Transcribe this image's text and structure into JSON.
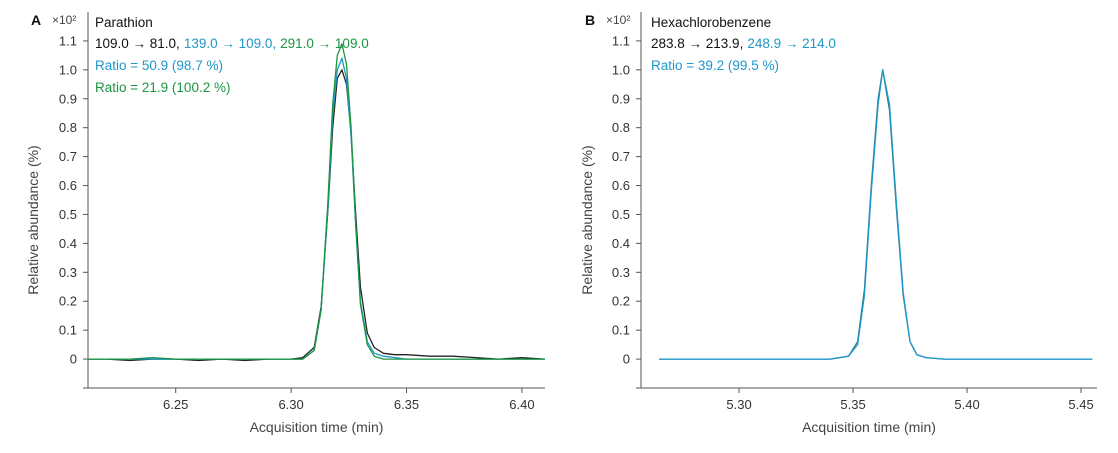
{
  "chart_data": [
    {
      "type": "line",
      "panel": "A",
      "title": "Parathion",
      "scale_label": "×10²",
      "xlabel": "Acquisition time (min)",
      "ylabel": "Relative abundance (%)",
      "xlim": [
        6.212,
        6.41
      ],
      "ylim": [
        -0.1,
        1.2
      ],
      "x_ticks": [
        6.25,
        6.3,
        6.35,
        6.4
      ],
      "x_tick_labels": [
        "6.25",
        "6.30",
        "6.35",
        "6.40"
      ],
      "y_ticks": [
        0,
        0.1,
        0.2,
        0.3,
        0.4,
        0.5,
        0.6,
        0.7,
        0.8,
        0.9,
        1.0,
        1.1
      ],
      "y_tick_labels": [
        "0",
        "0.1",
        "0.2",
        "0.3",
        "0.4",
        "0.5",
        "0.6",
        "0.7",
        "0.8",
        "0.9",
        "1.0",
        "1.1"
      ],
      "legend": {
        "transition_line": [
          {
            "text": "109.0 → 81.0,",
            "color": "#111111"
          },
          {
            "text": "139.0 → 109.0,",
            "color": "#1f97c9"
          },
          {
            "text": "291.0 → 109.0",
            "color": "#1a9641"
          }
        ],
        "ratios": [
          {
            "text": "Ratio = 50.9 (98.7 %)",
            "color": "#1f97c9"
          },
          {
            "text": "Ratio = 21.9 (100.2 %)",
            "color": "#1a9641"
          }
        ]
      },
      "series": [
        {
          "name": "109.0 → 81.0",
          "color": "#222222",
          "x": [
            6.212,
            6.22,
            6.23,
            6.24,
            6.25,
            6.26,
            6.27,
            6.28,
            6.29,
            6.3,
            6.305,
            6.31,
            6.313,
            6.316,
            6.318,
            6.32,
            6.322,
            6.324,
            6.326,
            6.328,
            6.33,
            6.333,
            6.336,
            6.34,
            6.345,
            6.35,
            6.36,
            6.37,
            6.38,
            6.39,
            6.4,
            6.41
          ],
          "y": [
            0.0,
            0.0,
            -0.005,
            0.0,
            0.0,
            -0.005,
            0.0,
            -0.005,
            0.0,
            0.0,
            0.005,
            0.04,
            0.18,
            0.52,
            0.8,
            0.97,
            1.0,
            0.95,
            0.78,
            0.5,
            0.25,
            0.09,
            0.04,
            0.02,
            0.015,
            0.015,
            0.01,
            0.01,
            0.005,
            0.0,
            0.005,
            0.0
          ]
        },
        {
          "name": "139.0 → 109.0",
          "color": "#1f97c9",
          "x": [
            6.212,
            6.22,
            6.23,
            6.24,
            6.25,
            6.26,
            6.27,
            6.28,
            6.29,
            6.3,
            6.305,
            6.31,
            6.313,
            6.316,
            6.318,
            6.32,
            6.322,
            6.324,
            6.326,
            6.328,
            6.33,
            6.333,
            6.336,
            6.34,
            6.345,
            6.35,
            6.36,
            6.37,
            6.38,
            6.39,
            6.4,
            6.41
          ],
          "y": [
            0.0,
            0.0,
            0.0,
            0.0,
            0.0,
            0.0,
            0.0,
            0.0,
            0.0,
            0.0,
            0.0,
            0.03,
            0.17,
            0.53,
            0.84,
            1.0,
            1.04,
            0.97,
            0.77,
            0.46,
            0.2,
            0.06,
            0.02,
            0.01,
            0.005,
            0.0,
            0.0,
            0.0,
            0.0,
            0.0,
            0.0,
            0.0
          ]
        },
        {
          "name": "291.0 → 109.0",
          "color": "#1a9641",
          "x": [
            6.212,
            6.22,
            6.23,
            6.24,
            6.25,
            6.26,
            6.27,
            6.28,
            6.29,
            6.3,
            6.305,
            6.31,
            6.313,
            6.316,
            6.318,
            6.32,
            6.322,
            6.324,
            6.326,
            6.328,
            6.33,
            6.333,
            6.336,
            6.34,
            6.345,
            6.35,
            6.36,
            6.37,
            6.38,
            6.39,
            6.4,
            6.41
          ],
          "y": [
            0.0,
            0.0,
            0.0,
            0.005,
            0.0,
            0.0,
            0.0,
            0.0,
            0.0,
            0.0,
            0.0,
            0.03,
            0.17,
            0.55,
            0.88,
            1.05,
            1.09,
            1.02,
            0.8,
            0.47,
            0.19,
            0.05,
            0.01,
            0.0,
            0.0,
            0.0,
            0.0,
            0.0,
            0.0,
            0.0,
            0.0,
            0.0
          ]
        }
      ]
    },
    {
      "type": "line",
      "panel": "B",
      "title": "Hexachlorobenzene",
      "scale_label": "×10²",
      "xlabel": "Acquisition time (min)",
      "ylabel": "Relative abundance (%)",
      "xlim": [
        5.257,
        5.457
      ],
      "ylim": [
        -0.1,
        1.2
      ],
      "x_ticks": [
        5.3,
        5.35,
        5.4,
        5.45
      ],
      "x_tick_labels": [
        "5.30",
        "5.35",
        "5.40",
        "5.45"
      ],
      "y_ticks": [
        0,
        0.1,
        0.2,
        0.3,
        0.4,
        0.5,
        0.6,
        0.7,
        0.8,
        0.9,
        1.0,
        1.1
      ],
      "y_tick_labels": [
        "0",
        "0.1",
        "0.2",
        "0.3",
        "0.4",
        "0.5",
        "0.6",
        "0.7",
        "0.8",
        "0.9",
        "1.0",
        "1.1"
      ],
      "legend": {
        "transition_line": [
          {
            "text": "283.8 → 213.9,",
            "color": "#111111"
          },
          {
            "text": "248.9 → 214.0",
            "color": "#1f97c9"
          }
        ],
        "ratios": [
          {
            "text": "Ratio = 39.2 (99.5 %)",
            "color": "#1f97c9"
          }
        ]
      },
      "series": [
        {
          "name": "283.8 → 213.9",
          "color": "#2a7a8c",
          "x": [
            5.265,
            5.3,
            5.34,
            5.348,
            5.352,
            5.355,
            5.358,
            5.361,
            5.363,
            5.366,
            5.369,
            5.372,
            5.375,
            5.378,
            5.382,
            5.39,
            5.4,
            5.42,
            5.455
          ],
          "y": [
            0.0,
            0.0,
            0.0,
            0.01,
            0.06,
            0.24,
            0.6,
            0.9,
            1.0,
            0.86,
            0.52,
            0.22,
            0.06,
            0.015,
            0.005,
            0.0,
            0.0,
            0.0,
            0.0
          ]
        },
        {
          "name": "248.9 → 214.0",
          "color": "#1f97c9",
          "x": [
            5.265,
            5.3,
            5.34,
            5.348,
            5.352,
            5.355,
            5.358,
            5.361,
            5.363,
            5.366,
            5.369,
            5.372,
            5.375,
            5.378,
            5.382,
            5.39,
            5.4,
            5.42,
            5.455
          ],
          "y": [
            0.0,
            0.0,
            0.0,
            0.01,
            0.05,
            0.22,
            0.58,
            0.88,
            1.0,
            0.88,
            0.54,
            0.23,
            0.06,
            0.015,
            0.005,
            0.0,
            0.0,
            0.0,
            0.0
          ]
        }
      ]
    }
  ]
}
